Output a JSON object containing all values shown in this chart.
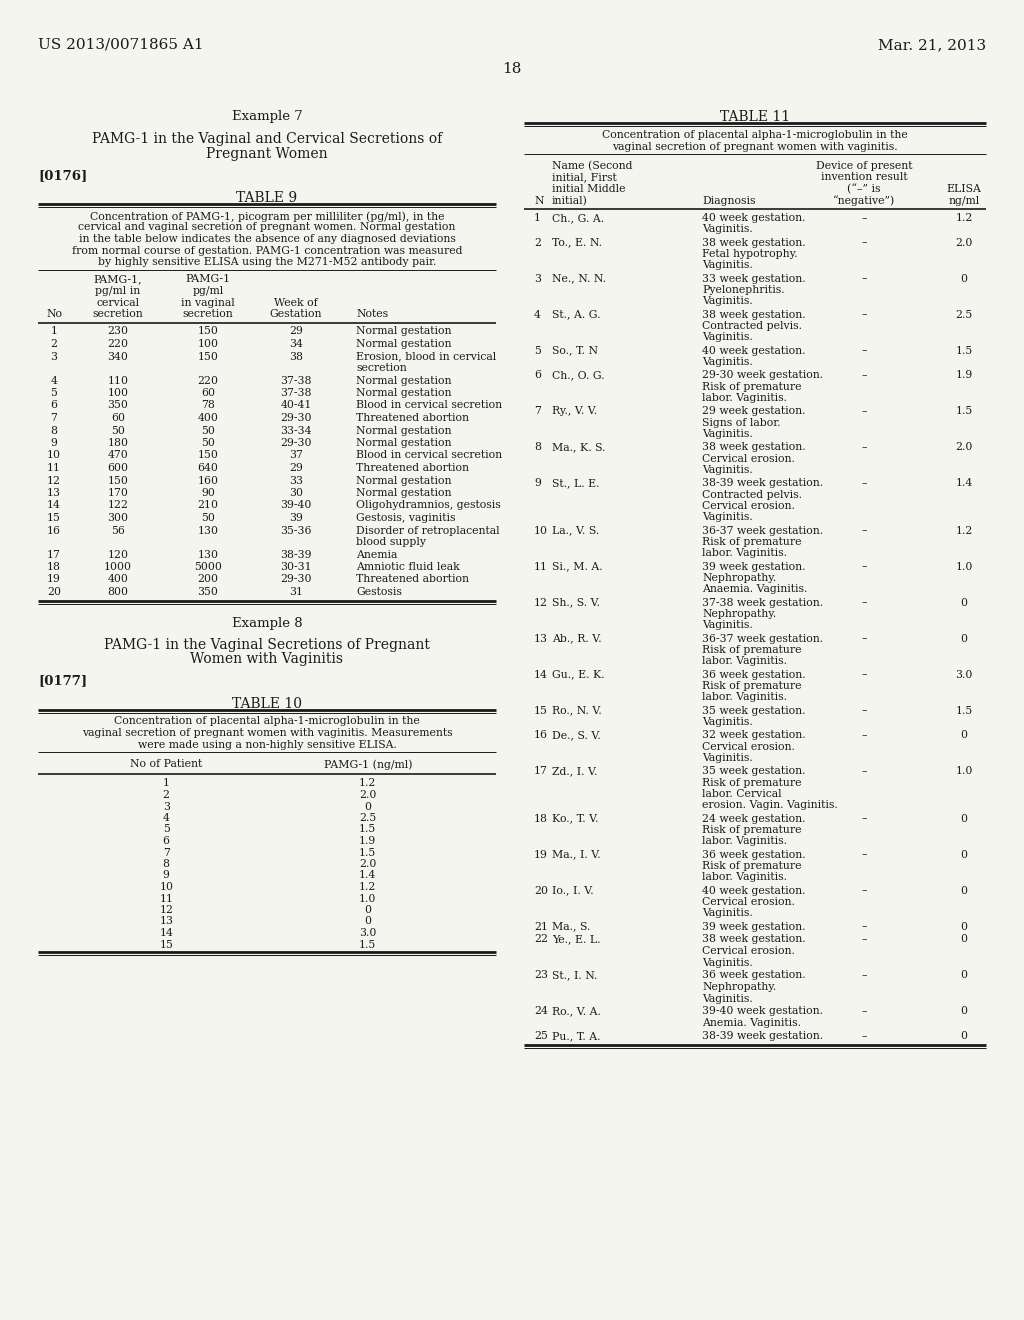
{
  "page_header_left": "US 2013/0071865 A1",
  "page_header_right": "Mar. 21, 2013",
  "page_number": "18",
  "bg_color": "#f5f5f0",
  "example7_title": "Example 7",
  "example7_subtitle": "PAMG-1 in the Vaginal and Cervical Secretions of\nPregnant Women",
  "paragraph176": "[0176]",
  "table9_title": "TABLE 9",
  "table9_description": "Concentration of PAMG-1, picogram per milliliter (pg/ml), in the\ncervical and vaginal secretion of pregnant women. Normal gestation\nin the table below indicates the absence of any diagnosed deviations\nfrom normal course of gestation. PAMG-1 concentration was measured\nby highly sensitive ELISA using the M271-M52 antibody pair.",
  "table9_col_headers": [
    "No",
    "PAMG-1,\npg/ml in\ncervical\nsecretion",
    "PAMG-1\npg/ml\nin vaginal\nsecretion",
    "Week of\nGestation",
    "Notes"
  ],
  "table9_data": [
    [
      "1",
      "230",
      "150",
      "29",
      "Normal gestation"
    ],
    [
      "2",
      "220",
      "100",
      "34",
      "Normal gestation"
    ],
    [
      "3",
      "340",
      "150",
      "38",
      "Erosion, blood in cervical\nsecretion"
    ],
    [
      "4",
      "110",
      "220",
      "37-38",
      "Normal gestation"
    ],
    [
      "5",
      "100",
      "60",
      "37-38",
      "Normal gestation"
    ],
    [
      "6",
      "350",
      "78",
      "40-41",
      "Blood in cervical secretion"
    ],
    [
      "7",
      "60",
      "400",
      "29-30",
      "Threatened abortion"
    ],
    [
      "8",
      "50",
      "50",
      "33-34",
      "Normal gestation"
    ],
    [
      "9",
      "180",
      "50",
      "29-30",
      "Normal gestation"
    ],
    [
      "10",
      "470",
      "150",
      "37",
      "Blood in cervical secretion"
    ],
    [
      "11",
      "600",
      "640",
      "29",
      "Threatened abortion"
    ],
    [
      "12",
      "150",
      "160",
      "33",
      "Normal gestation"
    ],
    [
      "13",
      "170",
      "90",
      "30",
      "Normal gestation"
    ],
    [
      "14",
      "122",
      "210",
      "39-40",
      "Oligohydramnios, gestosis"
    ],
    [
      "15",
      "300",
      "50",
      "39",
      "Gestosis, vaginitis"
    ],
    [
      "16",
      "56",
      "130",
      "35-36",
      "Disorder of retroplacental\nblood supply"
    ],
    [
      "17",
      "120",
      "130",
      "38-39",
      "Anemia"
    ],
    [
      "18",
      "1000",
      "5000",
      "30-31",
      "Amniotic fluid leak"
    ],
    [
      "19",
      "400",
      "200",
      "29-30",
      "Threatened abortion"
    ],
    [
      "20",
      "800",
      "350",
      "31",
      "Gestosis"
    ]
  ],
  "example8_title": "Example 8",
  "example8_subtitle": "PAMG-1 in the Vaginal Secretions of Pregnant\nWomen with Vaginitis",
  "paragraph177": "[0177]",
  "table10_title": "TABLE 10",
  "table10_description": "Concentration of placental alpha-1-microglobulin in the\nvaginal secretion of pregnant women with vaginitis. Measurements\nwere made using a non-highly sensitive ELISA.",
  "table10_col_headers": [
    "No of Patient",
    "PAMG-1 (ng/ml)"
  ],
  "table10_data": [
    [
      "1",
      "1.2"
    ],
    [
      "2",
      "2.0"
    ],
    [
      "3",
      "0"
    ],
    [
      "4",
      "2.5"
    ],
    [
      "5",
      "1.5"
    ],
    [
      "6",
      "1.9"
    ],
    [
      "7",
      "1.5"
    ],
    [
      "8",
      "2.0"
    ],
    [
      "9",
      "1.4"
    ],
    [
      "10",
      "1.2"
    ],
    [
      "11",
      "1.0"
    ],
    [
      "12",
      "0"
    ],
    [
      "13",
      "0"
    ],
    [
      "14",
      "3.0"
    ],
    [
      "15",
      "1.5"
    ]
  ],
  "table11_title": "TABLE 11",
  "table11_description": "Concentration of placental alpha-1-microglobulin in the\nvaginal secretion of pregnant women with vaginitis.",
  "table11_col_headers": [
    "N",
    "Name (Second\ninitial, First\ninitial Middle\ninitial)",
    "Diagnosis",
    "Device of present\ninvention result\n(“–” is\n“negative”)",
    "ELISA\nng/ml"
  ],
  "table11_data": [
    [
      "1",
      "Ch., G. A.",
      "40 week gestation.\nVaginitis.",
      "–",
      "1.2"
    ],
    [
      "2",
      "To., E. N.",
      "38 week gestation.\nFetal hypotrophy.\nVaginitis.",
      "–",
      "2.0"
    ],
    [
      "3",
      "Ne., N. N.",
      "33 week gestation.\nPyelonephritis.\nVaginitis.",
      "–",
      "0"
    ],
    [
      "4",
      "St., A. G.",
      "38 week gestation.\nContracted pelvis.\nVaginitis.",
      "–",
      "2.5"
    ],
    [
      "5",
      "So., T. N",
      "40 week gestation.\nVaginitis.",
      "–",
      "1.5"
    ],
    [
      "6",
      "Ch., O. G.",
      "29-30 week gestation.\nRisk of premature\nlabor. Vaginitis.",
      "–",
      "1.9"
    ],
    [
      "7",
      "Ry., V. V.",
      "29 week gestation.\nSigns of labor.\nVaginitis.",
      "–",
      "1.5"
    ],
    [
      "8",
      "Ma., K. S.",
      "38 week gestation.\nCervical erosion.\nVaginitis.",
      "–",
      "2.0"
    ],
    [
      "9",
      "St., L. E.",
      "38-39 week gestation.\nContracted pelvis.\nCervical erosion.\nVaginitis.",
      "–",
      "1.4"
    ],
    [
      "10",
      "La., V. S.",
      "36-37 week gestation.\nRisk of premature\nlabor. Vaginitis.",
      "–",
      "1.2"
    ],
    [
      "11",
      "Si., M. A.",
      "39 week gestation.\nNephropathy.\nAnaemia. Vaginitis.",
      "–",
      "1.0"
    ],
    [
      "12",
      "Sh., S. V.",
      "37-38 week gestation.\nNephropathy.\nVaginitis.",
      "–",
      "0"
    ],
    [
      "13",
      "Ab., R. V.",
      "36-37 week gestation.\nRisk of premature\nlabor. Vaginitis.",
      "–",
      "0"
    ],
    [
      "14",
      "Gu., E. K.",
      "36 week gestation.\nRisk of premature\nlabor. Vaginitis.",
      "–",
      "3.0"
    ],
    [
      "15",
      "Ro., N. V.",
      "35 week gestation.\nVaginitis.",
      "–",
      "1.5"
    ],
    [
      "16",
      "De., S. V.",
      "32 week gestation.\nCervical erosion.\nVaginitis.",
      "–",
      "0"
    ],
    [
      "17",
      "Zd., I. V.",
      "35 week gestation.\nRisk of premature\nlabor. Cervical\nerosion. Vagin. Vaginitis.",
      "–",
      "1.0"
    ],
    [
      "18",
      "Ko., T. V.",
      "24 week gestation.\nRisk of premature\nlabor. Vaginitis.",
      "–",
      "0"
    ],
    [
      "19",
      "Ma., I. V.",
      "36 week gestation.\nRisk of premature\nlabor. Vaginitis.",
      "–",
      "0"
    ],
    [
      "20",
      "Io., I. V.",
      "40 week gestation.\nCervical erosion.\nVaginitis.",
      "–",
      "0"
    ],
    [
      "21",
      "Ma., S.",
      "39 week gestation.",
      "–",
      "0"
    ],
    [
      "22",
      "Ye., E. L.",
      "38 week gestation.\nCervical erosion.\nVaginitis.",
      "–",
      "0"
    ],
    [
      "23",
      "St., I. N.",
      "36 week gestation.\nNephropathy.\nVaginitis.",
      "–",
      "0"
    ],
    [
      "24",
      "Ro., V. A.",
      "39-40 week gestation.\nAnemia. Vaginitis.",
      "–",
      "0"
    ],
    [
      "25",
      "Pu., T. A.",
      "38-39 week gestation.",
      "–",
      "0"
    ]
  ]
}
